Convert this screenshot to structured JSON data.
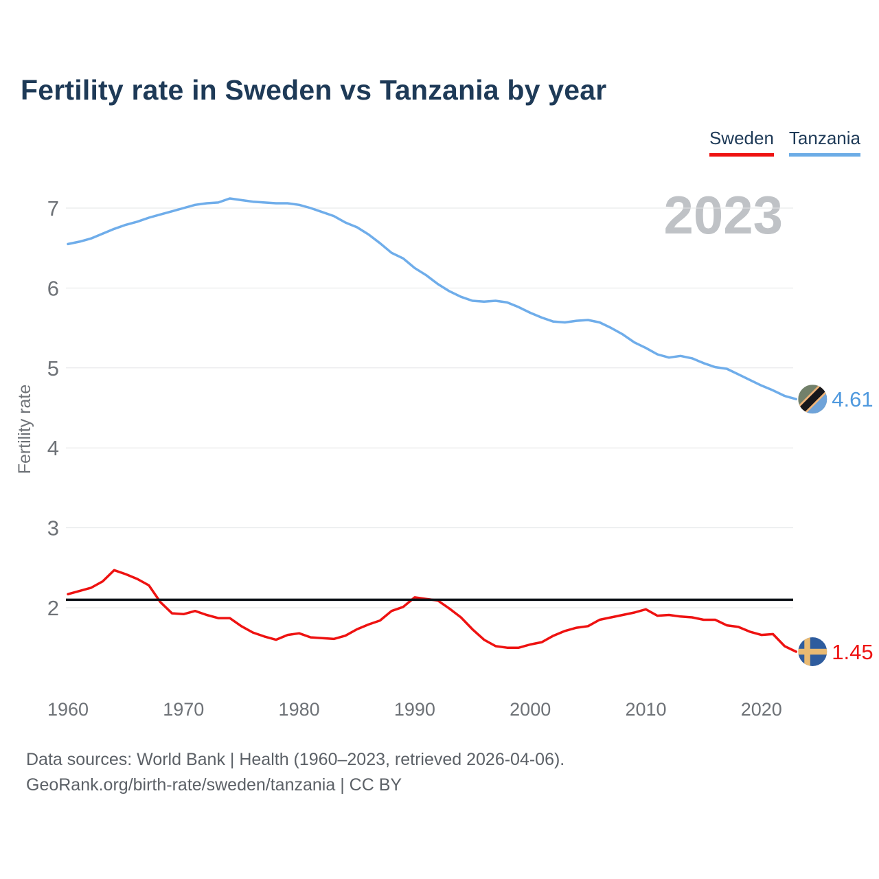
{
  "title": "Fertility rate in Sweden vs Tanzania by year",
  "legend": [
    {
      "label": "Sweden",
      "color": "#ee1211"
    },
    {
      "label": "Tanzania",
      "color": "#6cace6"
    }
  ],
  "watermark": "2023",
  "y_axis": {
    "label": "Fertility rate",
    "ticks": [
      7,
      6,
      5,
      4,
      3,
      2
    ]
  },
  "x_axis": {
    "ticks": [
      1960,
      1970,
      1980,
      1990,
      2000,
      2010,
      2020
    ]
  },
  "reference_line": {
    "value": 2.1,
    "color": "#0d1117"
  },
  "end_markers": [
    {
      "series": "Tanzania",
      "flag": "tanzania-flag",
      "value": "4.61",
      "label_color": "#4f99de"
    },
    {
      "series": "Sweden",
      "flag": "sweden-flag",
      "value": "1.45",
      "label_color": "#ee1211"
    }
  ],
  "source": {
    "line1": "Data sources: World Bank | Health (1960–2023, retrieved 2026-04-06).",
    "line2": "GeoRank.org/birth-rate/sweden/tanzania | CC BY"
  },
  "chart_data": {
    "type": "line",
    "title": "Fertility rate in Sweden vs Tanzania by year",
    "xlabel": "",
    "ylabel": "Fertility rate",
    "x_range": [
      1960,
      2023
    ],
    "ylim": [
      1,
      7.5
    ],
    "grid": "horizontal",
    "legend_position": "top-right",
    "reference_line": 2.1,
    "x": [
      1960,
      1961,
      1962,
      1963,
      1964,
      1965,
      1966,
      1967,
      1968,
      1969,
      1970,
      1971,
      1972,
      1973,
      1974,
      1975,
      1976,
      1977,
      1978,
      1979,
      1980,
      1981,
      1982,
      1983,
      1984,
      1985,
      1986,
      1987,
      1988,
      1989,
      1990,
      1991,
      1992,
      1993,
      1994,
      1995,
      1996,
      1997,
      1998,
      1999,
      2000,
      2001,
      2002,
      2003,
      2004,
      2005,
      2006,
      2007,
      2008,
      2009,
      2010,
      2011,
      2012,
      2013,
      2014,
      2015,
      2016,
      2017,
      2018,
      2019,
      2020,
      2021,
      2022,
      2023
    ],
    "series": [
      {
        "name": "Tanzania",
        "color": "#6fadea",
        "end_label": "4.61",
        "values": [
          6.55,
          6.58,
          6.62,
          6.68,
          6.74,
          6.79,
          6.83,
          6.88,
          6.92,
          6.96,
          7.0,
          7.04,
          7.06,
          7.07,
          7.12,
          7.1,
          7.08,
          7.07,
          7.06,
          7.06,
          7.04,
          7.0,
          6.95,
          6.9,
          6.82,
          6.76,
          6.67,
          6.56,
          6.44,
          6.37,
          6.25,
          6.16,
          6.05,
          5.96,
          5.89,
          5.84,
          5.83,
          5.84,
          5.82,
          5.76,
          5.69,
          5.63,
          5.58,
          5.57,
          5.59,
          5.6,
          5.57,
          5.5,
          5.42,
          5.32,
          5.25,
          5.17,
          5.13,
          5.15,
          5.12,
          5.06,
          5.01,
          4.99,
          4.92,
          4.85,
          4.78,
          4.72,
          4.65,
          4.61
        ]
      },
      {
        "name": "Sweden",
        "color": "#ee1211",
        "end_label": "1.45",
        "values": [
          2.17,
          2.21,
          2.25,
          2.33,
          2.47,
          2.42,
          2.36,
          2.28,
          2.07,
          1.93,
          1.92,
          1.96,
          1.91,
          1.87,
          1.87,
          1.77,
          1.69,
          1.64,
          1.6,
          1.66,
          1.68,
          1.63,
          1.62,
          1.61,
          1.65,
          1.73,
          1.79,
          1.84,
          1.96,
          2.01,
          2.13,
          2.11,
          2.09,
          1.99,
          1.88,
          1.73,
          1.6,
          1.52,
          1.5,
          1.5,
          1.54,
          1.57,
          1.65,
          1.71,
          1.75,
          1.77,
          1.85,
          1.88,
          1.91,
          1.94,
          1.98,
          1.9,
          1.91,
          1.89,
          1.88,
          1.85,
          1.85,
          1.78,
          1.76,
          1.7,
          1.66,
          1.67,
          1.52,
          1.45
        ]
      }
    ]
  }
}
